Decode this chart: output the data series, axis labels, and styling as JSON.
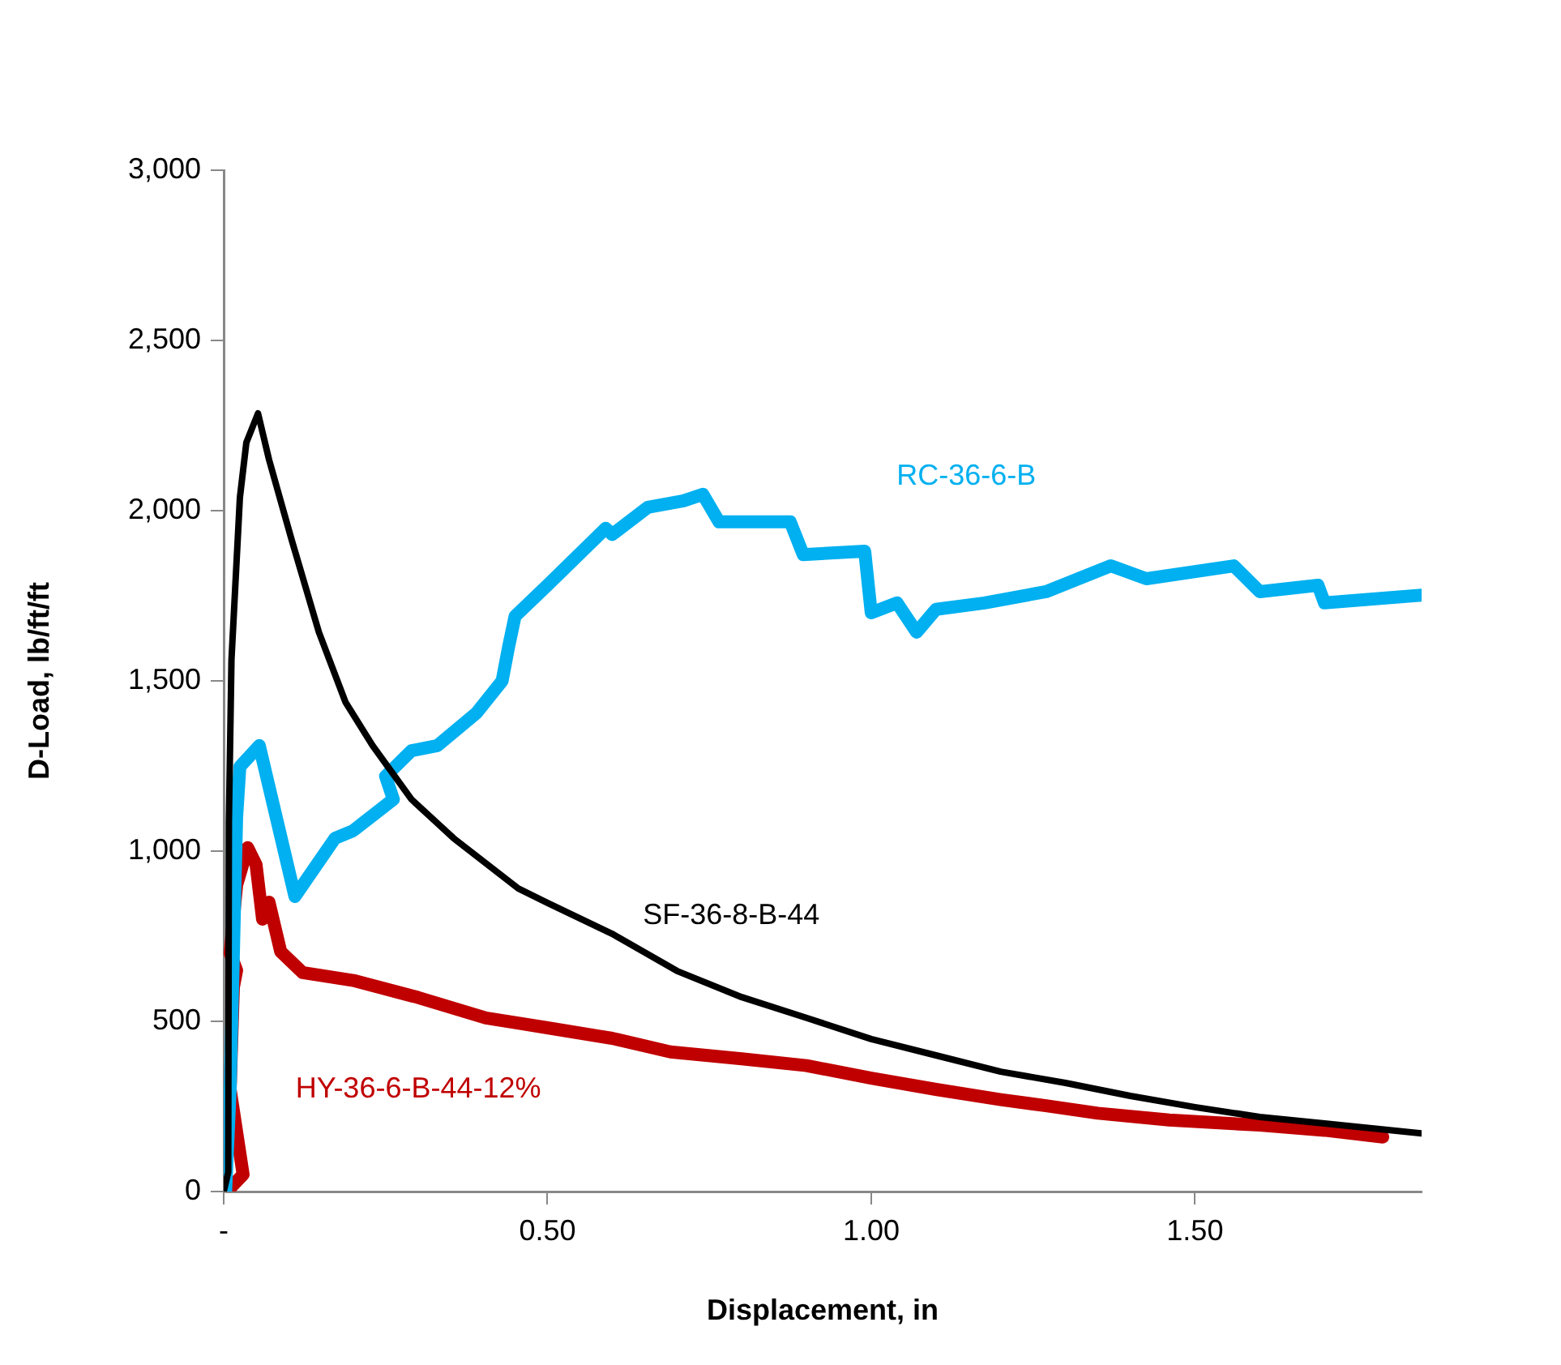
{
  "chart_data": {
    "type": "line",
    "xlabel": "Displacement, in",
    "ylabel": "D-Load, lb/ft/ft",
    "xlim": [
      0,
      1.85
    ],
    "ylim": [
      0,
      3000
    ],
    "xticks": [
      {
        "value": 0,
        "label": "-"
      },
      {
        "value": 0.5,
        "label": "0.50"
      },
      {
        "value": 1,
        "label": "1.00"
      },
      {
        "value": 1.5,
        "label": "1.50"
      }
    ],
    "yticks": [
      0,
      {
        "value": 500,
        "label": "500"
      },
      {
        "value": 1000,
        "label": "1,000"
      },
      {
        "value": 1500,
        "label": "1,500"
      },
      {
        "value": 2000,
        "label": "2,000"
      },
      {
        "value": 2500,
        "label": "2,500"
      },
      {
        "value": 3000,
        "label": "3,000"
      }
    ],
    "grid": false,
    "legend": false,
    "marker": "none",
    "line_style": "solid",
    "series": [
      {
        "name": "HY-36-6-B-44-12%",
        "color": "#c00000",
        "x": [
          0.005,
          0.03,
          0.01,
          0.015,
          0.02,
          0.01,
          0.02,
          0.037,
          0.05,
          0.06,
          0.07,
          0.088,
          0.122,
          0.2,
          0.3,
          0.405,
          0.5,
          0.6,
          0.69,
          0.8,
          0.9,
          1.0,
          1.1,
          1.2,
          1.27,
          1.35,
          1.46,
          1.6,
          1.7,
          1.79
        ],
        "values": [
          0,
          50,
          300,
          600,
          650,
          700,
          900,
          1010,
          960,
          800,
          850,
          705,
          643,
          620,
          570,
          510,
          481,
          450,
          410,
          390,
          370,
          333,
          300,
          270,
          252,
          230,
          210,
          195,
          180,
          160
        ]
      },
      {
        "name": "RC-36-6-B",
        "color": "#00b0f0",
        "x": [
          0.003,
          0.01,
          0.015,
          0.02,
          0.025,
          0.055,
          0.11,
          0.172,
          0.2,
          0.262,
          0.25,
          0.29,
          0.33,
          0.39,
          0.43,
          0.44,
          0.45,
          0.5,
          0.59,
          0.6,
          0.655,
          0.71,
          0.74,
          0.765,
          0.875,
          0.895,
          0.99,
          1.0,
          1.04,
          1.07,
          1.1,
          1.175,
          1.27,
          1.37,
          1.425,
          1.56,
          1.6,
          1.69,
          1.7,
          1.85
        ],
        "values": [
          0,
          300,
          700,
          1100,
          1248,
          1310,
          867,
          1038,
          1060,
          1152,
          1220,
          1295,
          1310,
          1405,
          1500,
          1600,
          1690,
          1781,
          1948,
          1930,
          2010,
          2029,
          2048,
          1967,
          1967,
          1871,
          1881,
          1700,
          1729,
          1643,
          1710,
          1729,
          1762,
          1838,
          1800,
          1838,
          1762,
          1781,
          1729,
          1752
        ]
      },
      {
        "name": "SF-36-8-B-44",
        "color": "#000000",
        "x": [
          0,
          0.007,
          0.008,
          0.012,
          0.025,
          0.035,
          0.053,
          0.07,
          0.105,
          0.147,
          0.188,
          0.23,
          0.29,
          0.355,
          0.455,
          0.5,
          0.6,
          0.7,
          0.8,
          0.9,
          1.0,
          1.1,
          1.2,
          1.3,
          1.4,
          1.5,
          1.6,
          1.7,
          1.85
        ],
        "values": [
          0,
          57,
          1086,
          1562,
          2038,
          2200,
          2286,
          2150,
          1914,
          1643,
          1438,
          1310,
          1152,
          1038,
          890,
          848,
          757,
          648,
          571,
          510,
          448,
          400,
          352,
          319,
          281,
          248,
          219,
          200,
          171
        ]
      }
    ]
  }
}
